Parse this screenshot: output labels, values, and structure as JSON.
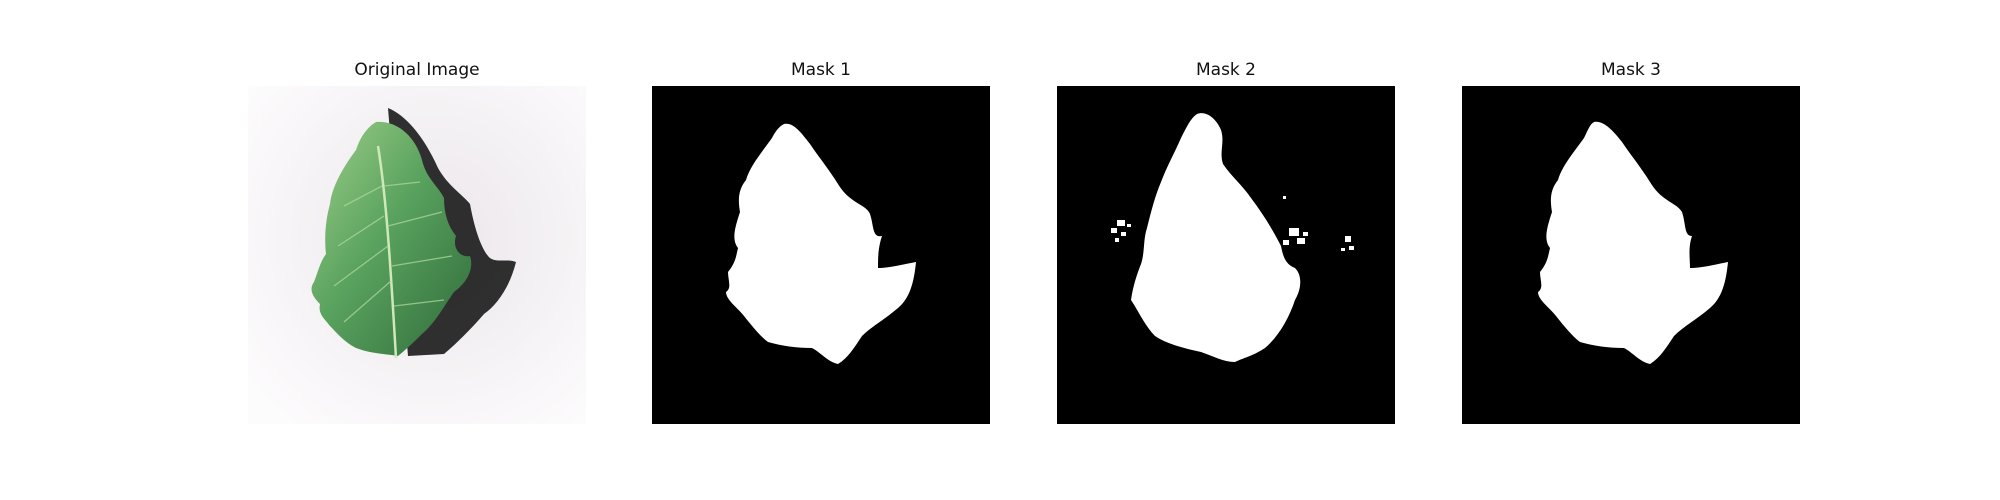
{
  "panels": [
    {
      "title": "Original Image"
    },
    {
      "title": "Mask 1"
    },
    {
      "title": "Mask 2"
    },
    {
      "title": "Mask 3"
    }
  ],
  "colors": {
    "background": "#ffffff",
    "mask_background": "#000000",
    "mask_foreground": "#ffffff",
    "leaf_green": "#5aa35f",
    "leaf_dark": "#2f6b3a",
    "ground": "#f1edf1",
    "shadow": "#1a1a1a"
  }
}
